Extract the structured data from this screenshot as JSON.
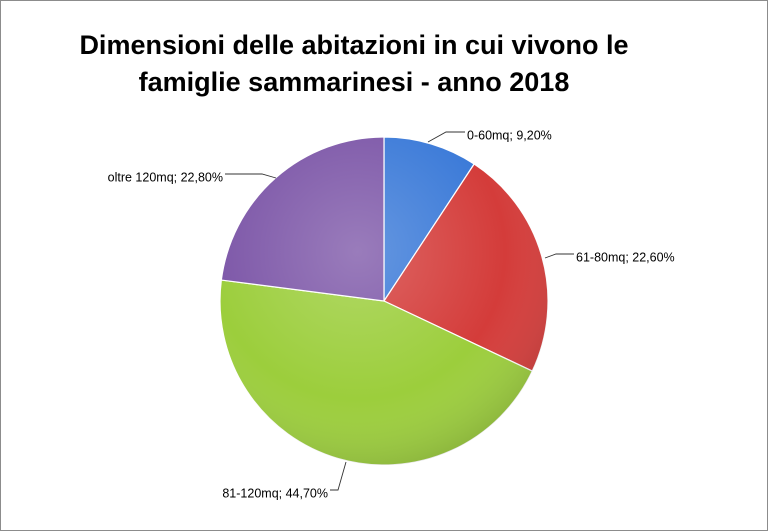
{
  "chart_data": {
    "type": "pie",
    "title_lines": [
      "Dimensioni delle abitazioni in cui vivono le",
      "famiglie sammarinesi - anno 2018"
    ],
    "slices": [
      {
        "category": "0-60mq",
        "value": 9.2,
        "label": "0-60mq; 9,20%",
        "color": "#3b7ad8"
      },
      {
        "category": "61-80mq",
        "value": 22.6,
        "label": "61-80mq; 22,60%",
        "color": "#d43c3a"
      },
      {
        "category": "81-120mq",
        "value": 44.7,
        "label": "81-120mq; 44,70%",
        "color": "#9cce3c"
      },
      {
        "category": "oltre 120mq",
        "value": 22.8,
        "label": "oltre 120mq; 22,80%",
        "color": "#7d57a8"
      }
    ],
    "legend": "none",
    "start_angle": "12 o'clock, clockwise"
  }
}
